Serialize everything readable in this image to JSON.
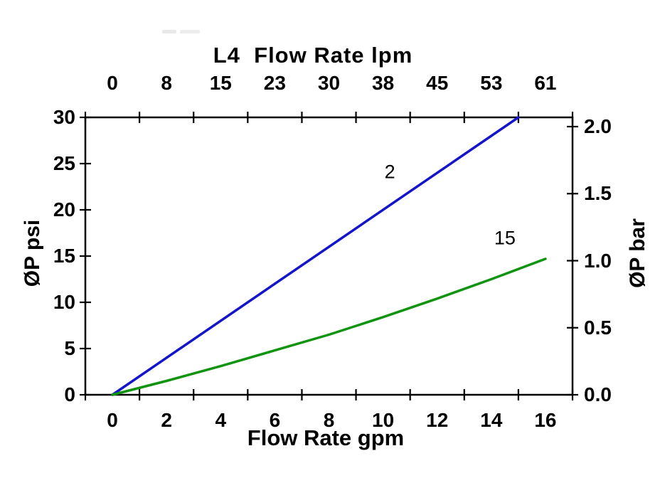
{
  "chart": {
    "title": "L4  Flow Rate lpm",
    "bottom_axis_title": "Flow Rate gpm",
    "left_axis_title": "ØP psi",
    "right_axis_title": "ØP bar"
  },
  "chart_data": {
    "type": "line",
    "title": "L4  Flow Rate lpm",
    "grid": false,
    "legend": "inline-labels",
    "top_axis": {
      "label": "L4  Flow Rate lpm",
      "unit": "lpm",
      "tick_labels": [
        "0",
        "8",
        "15",
        "23",
        "30",
        "38",
        "45",
        "53",
        "61"
      ]
    },
    "bottom_axis": {
      "label": "Flow Rate gpm",
      "unit": "gpm",
      "tick_labels": [
        "0",
        "2",
        "4",
        "6",
        "8",
        "10",
        "12",
        "14",
        "16"
      ],
      "tick_values": [
        0,
        2,
        4,
        6,
        8,
        10,
        12,
        14,
        16
      ],
      "range": [
        0,
        16
      ]
    },
    "left_axis": {
      "label": "ØP psi",
      "unit": "psi",
      "tick_labels": [
        "0",
        "5",
        "10",
        "15",
        "20",
        "25",
        "30"
      ],
      "tick_values": [
        0,
        5,
        10,
        15,
        20,
        25,
        30
      ],
      "range": [
        0,
        30
      ]
    },
    "right_axis": {
      "label": "ØP bar",
      "unit": "bar",
      "tick_labels": [
        "0.0",
        "0.5",
        "1.0",
        "1.5",
        "2.0"
      ],
      "tick_values": [
        0,
        0.5,
        1.0,
        1.5,
        2.0
      ],
      "range": [
        0,
        2
      ],
      "psi_per_bar": 14.5
    },
    "series": [
      {
        "name": "2",
        "color": "#1414CC",
        "x_gpm": [
          0,
          15
        ],
        "y_psi": [
          0,
          30
        ],
        "label_at": {
          "gpm": 10.25,
          "psi": 24.1
        }
      },
      {
        "name": "15",
        "color": "#109410",
        "x_gpm": [
          0,
          2,
          4,
          6,
          8,
          10,
          12,
          14,
          16
        ],
        "y_psi": [
          0,
          1.5,
          3.1,
          4.8,
          6.5,
          8.4,
          10.4,
          12.5,
          14.7
        ],
        "label_at": {
          "gpm": 14.5,
          "psi": 16.9
        }
      }
    ]
  }
}
